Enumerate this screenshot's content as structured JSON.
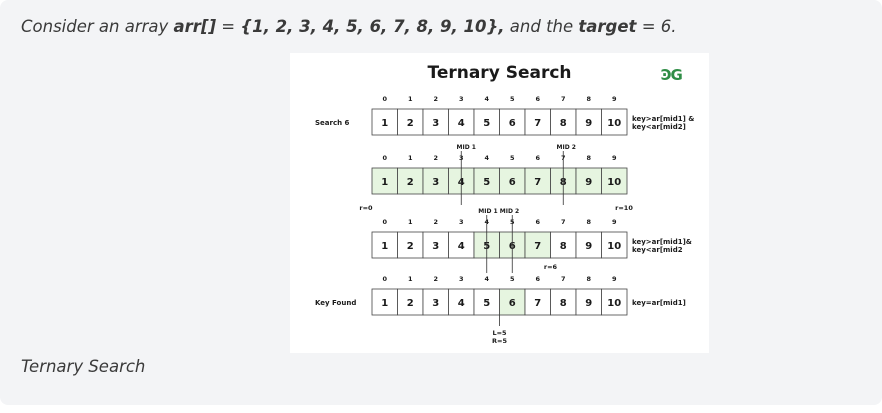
{
  "intro": {
    "prefix": "Consider an array ",
    "array_name": "arr[]",
    "equals": " = ",
    "array_values": "{1, 2, 3, 4, 5, 6, 7, 8, 9, 10},",
    "middle": " and the ",
    "target_label": "target",
    "target_rest": " = 6."
  },
  "figure": {
    "title": "Ternary Search",
    "logo": "ϿG",
    "accent_color": "#2f8d46",
    "highlight_color": "#e6f5e0",
    "rows": [
      {
        "indices": [
          "0",
          "1",
          "2",
          "3",
          "4",
          "5",
          "6",
          "7",
          "8",
          "9"
        ],
        "values": [
          "1",
          "2",
          "3",
          "4",
          "5",
          "6",
          "7",
          "8",
          "9",
          "10"
        ],
        "highlighted": [],
        "left_label": "Search 6",
        "right_lines": [
          "key>ar[mid1] &",
          "key<ar[mid2]"
        ]
      },
      {
        "indices": [
          "0",
          "1",
          "2",
          "3",
          "4",
          "5",
          "6",
          "7",
          "8",
          "9"
        ],
        "values": [
          "1",
          "2",
          "3",
          "4",
          "5",
          "6",
          "7",
          "8",
          "9",
          "10"
        ],
        "highlighted": [
          0,
          1,
          2,
          3,
          4,
          5,
          6,
          7,
          8,
          9
        ],
        "left_label": "",
        "right_lines": []
      },
      {
        "indices": [
          "0",
          "1",
          "2",
          "3",
          "4",
          "5",
          "6",
          "7",
          "8",
          "9"
        ],
        "values": [
          "1",
          "2",
          "3",
          "4",
          "5",
          "6",
          "7",
          "8",
          "9",
          "10"
        ],
        "highlighted": [
          4,
          5,
          6
        ],
        "left_label": "",
        "right_lines": [
          "key>ar[mid1]&",
          "key<ar[mid2"
        ]
      },
      {
        "indices": [
          "0",
          "1",
          "2",
          "3",
          "4",
          "5",
          "6",
          "7",
          "8",
          "9"
        ],
        "values": [
          "1",
          "2",
          "3",
          "4",
          "5",
          "6",
          "7",
          "8",
          "9",
          "10"
        ],
        "highlighted": [
          5
        ],
        "left_label": "Key Found",
        "right_lines": [
          "key=ar[mid1]"
        ]
      }
    ],
    "markers": {
      "mid1": "MID 1",
      "mid2": "MID 2",
      "r0": "r=0",
      "r10": "r=10",
      "mid1_mid2": "MID 1  MID 2",
      "r6": "r=6",
      "l5": "L=5",
      "r5": "R=5"
    }
  },
  "caption": "Ternary Search"
}
